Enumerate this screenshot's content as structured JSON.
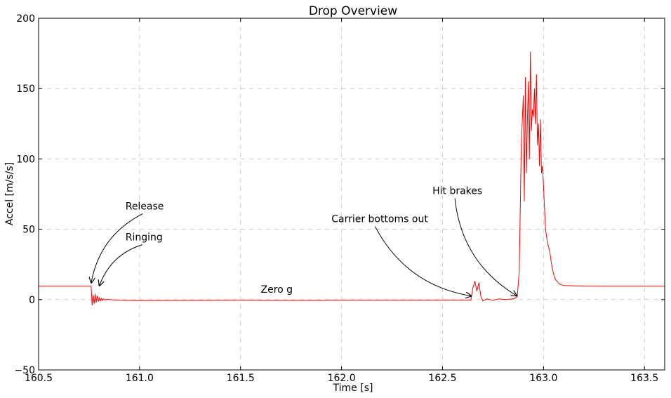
{
  "chart_data": {
    "type": "line",
    "title": "Drop Overview",
    "xlabel": "Time [s]",
    "ylabel": "Accel [m/s/s]",
    "xlim": [
      160.5,
      163.6
    ],
    "ylim": [
      -50,
      200
    ],
    "xticks": [
      160.5,
      161.0,
      161.5,
      162.0,
      162.5,
      163.0,
      163.5
    ],
    "xtick_labels": [
      "160.5",
      "161.0",
      "161.5",
      "162.0",
      "162.5",
      "163.0",
      "163.5"
    ],
    "yticks": [
      -50,
      0,
      50,
      100,
      150,
      200
    ],
    "ytick_labels": [
      "−50",
      "0",
      "50",
      "100",
      "150",
      "200"
    ],
    "grid": true,
    "line_color": "#ff0000",
    "series": [
      {
        "x": [
          160.5,
          160.75,
          160.76,
          160.765,
          160.77,
          160.775,
          160.78,
          160.785,
          160.79,
          160.795,
          160.8,
          160.805,
          160.81,
          160.815,
          160.82,
          160.83,
          160.84,
          160.85,
          160.87,
          160.9,
          161.0,
          161.2,
          161.5,
          161.8,
          162.0,
          162.3,
          162.6,
          162.64,
          162.65,
          162.66,
          162.67,
          162.68,
          162.69,
          162.7,
          162.72,
          162.75,
          162.78,
          162.81,
          162.85,
          162.87,
          162.88,
          162.89,
          162.9,
          162.905,
          162.91,
          162.915,
          162.92,
          162.925,
          162.93,
          162.935,
          162.94,
          162.945,
          162.95,
          162.955,
          162.96,
          162.965,
          162.97,
          162.975,
          162.98,
          162.985,
          162.99,
          162.995,
          163.0,
          163.005,
          163.01,
          163.02,
          163.03,
          163.04,
          163.05,
          163.06,
          163.08,
          163.1,
          163.15,
          163.2,
          163.3,
          163.4,
          163.5,
          163.6
        ],
        "y": [
          9.5,
          9.5,
          9.5,
          -4,
          3,
          -3,
          4,
          -2,
          2.5,
          -1.5,
          1.5,
          -1,
          1,
          -0.8,
          0.6,
          -0.4,
          0.3,
          0,
          -0.2,
          -0.5,
          -0.7,
          -0.6,
          -0.5,
          -0.6,
          -0.5,
          -0.5,
          -0.4,
          -0.4,
          8,
          13,
          6,
          12,
          2,
          -1,
          0.5,
          -0.5,
          0.5,
          0,
          0.5,
          2,
          20,
          110,
          145,
          70,
          158,
          90,
          125,
          155,
          100,
          176,
          120,
          135,
          130,
          150,
          125,
          160,
          110,
          125,
          95,
          128,
          90,
          95,
          80,
          65,
          50,
          40,
          35,
          25,
          18,
          14,
          11,
          10,
          9.8,
          9.6,
          9.5,
          9.5,
          9.5,
          9.5
        ]
      }
    ],
    "annotations": [
      {
        "text": "Release",
        "text_x": 160.93,
        "text_y": 64,
        "x": 160.76,
        "y": 10
      },
      {
        "text": "Ringing",
        "text_x": 160.93,
        "text_y": 42,
        "x": 160.8,
        "y": 8
      },
      {
        "text": "Zero g",
        "text_x": 161.6,
        "text_y": 5,
        "x": null,
        "y": null
      },
      {
        "text": "Carrier bottoms out",
        "text_x": 161.95,
        "text_y": 55,
        "x": 162.645,
        "y": 1
      },
      {
        "text": "Hit brakes",
        "text_x": 162.45,
        "text_y": 75,
        "x": 162.87,
        "y": 1
      }
    ]
  }
}
